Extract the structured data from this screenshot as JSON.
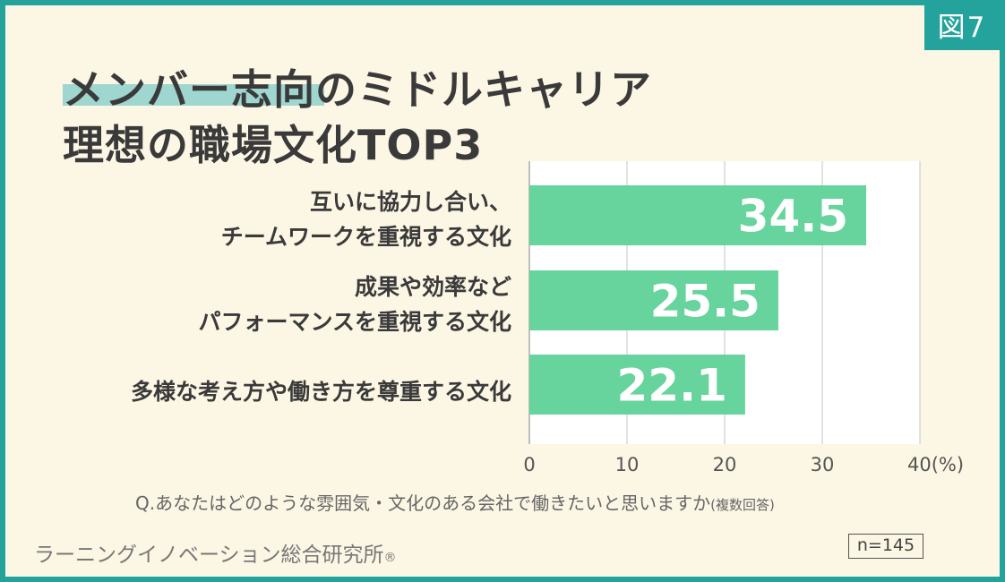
{
  "figure_badge": "図7",
  "title_line1": "メンバー志向のミドルキャリア",
  "title_line2": "理想の職場文化TOP3",
  "question": "Q.あなたはどのような雰囲気・文化のある会社で働きたいと思いますか",
  "question_suffix": "(複数回答)",
  "organization": "ラーニングイノベーション総合研究所",
  "registered_mark": "®",
  "sample_size": "n=145",
  "colors": {
    "bar": "#66d49c",
    "frame": "#23a39b",
    "background": "#fcf6e4",
    "title_highlight": "#9fd6cf"
  },
  "chart_data": {
    "type": "bar",
    "orientation": "horizontal",
    "categories": [
      "互いに協力し合い、\nチームワークを重視する文化",
      "成果や効率など\nパフォーマンスを重視する文化",
      "多様な考え方や働き方を尊重する文化"
    ],
    "values": [
      34.5,
      25.5,
      22.1
    ],
    "value_labels": [
      "34.5",
      "25.5",
      "22.1"
    ],
    "xlim": [
      0,
      40
    ],
    "xticks": [
      "0",
      "10",
      "20",
      "30",
      "40(%)"
    ],
    "xtick_values": [
      0,
      10,
      20,
      30,
      40
    ],
    "unit": "(%)",
    "grid": true
  }
}
